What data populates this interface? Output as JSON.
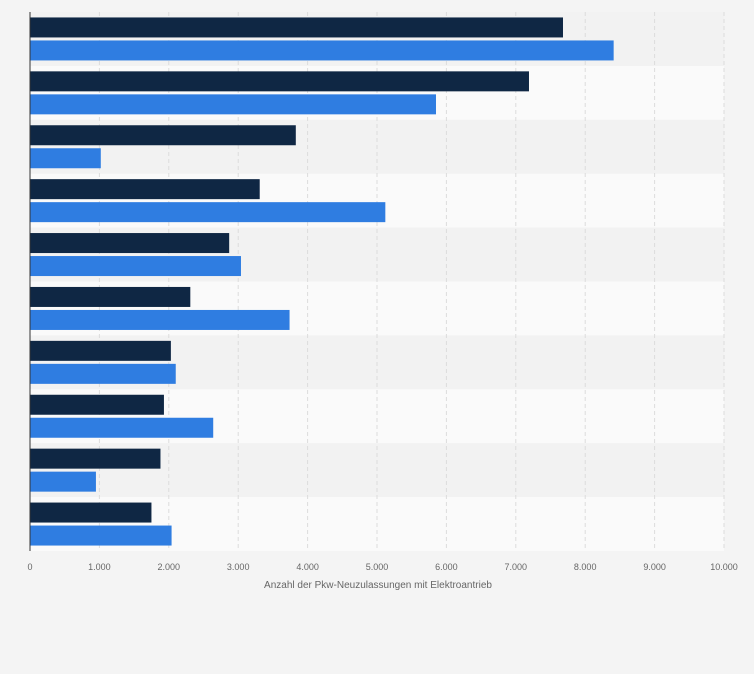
{
  "chart_data": {
    "type": "bar",
    "orientation": "horizontal",
    "categories": [
      "",
      "",
      "",
      "",
      "",
      "",
      "",
      "",
      "",
      ""
    ],
    "series": [
      {
        "color": "#0f2744",
        "values": [
          7680,
          7190,
          3830,
          3310,
          2870,
          2310,
          2030,
          1930,
          1880,
          1750
        ]
      },
      {
        "color": "#2f7de1",
        "values": [
          8410,
          5850,
          1020,
          5120,
          3040,
          3740,
          2100,
          2640,
          950,
          2040
        ]
      }
    ],
    "xlim": [
      0,
      10000
    ],
    "xticks": [
      0,
      1000,
      2000,
      3000,
      4000,
      5000,
      6000,
      7000,
      8000,
      9000,
      10000
    ],
    "xtick_labels": [
      "0",
      "1.000",
      "2.000",
      "3.000",
      "4.000",
      "5.000",
      "6.000",
      "7.000",
      "8.000",
      "9.000",
      "10.000"
    ],
    "xlabel": "Anzahl der Pkw-Neuzulassungen mit Elektroantrieb",
    "grid": true,
    "legend": "none"
  }
}
